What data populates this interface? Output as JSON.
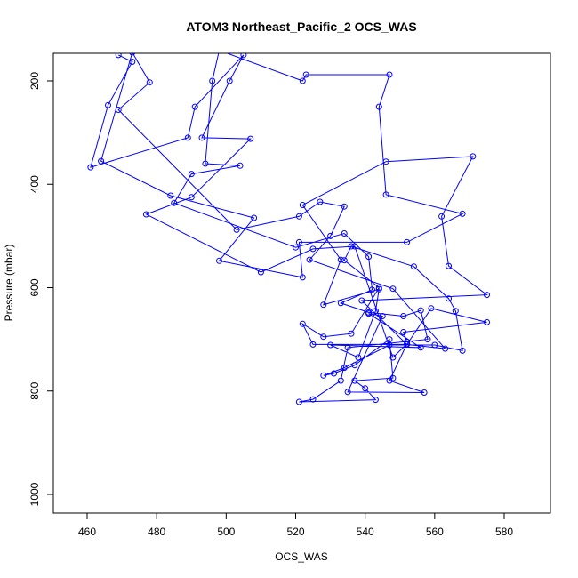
{
  "chart_data": {
    "type": "line",
    "title": "ATOM3 Northeast_Pacific_2 OCS_WAS",
    "xlabel": "OCS_WAS",
    "ylabel": "Pressure (mbar)",
    "xlim": [
      450,
      592
    ],
    "ylim": [
      1035,
      150
    ],
    "y_reversed": true,
    "x_ticks": [
      460,
      480,
      500,
      520,
      540,
      560,
      580
    ],
    "y_ticks": [
      200,
      400,
      600,
      800,
      1000
    ],
    "grid": false,
    "legend": "none",
    "line_color": "#0000ff",
    "series": [
      {
        "values": [
          [
            469,
            150
          ],
          [
            473,
            163
          ],
          [
            466,
            247
          ],
          [
            461,
            367
          ],
          [
            489,
            310
          ],
          [
            491,
            250
          ],
          [
            505,
            150
          ],
          [
            501,
            200
          ],
          [
            493,
            310
          ],
          [
            507,
            312
          ],
          [
            490,
            425
          ],
          [
            477,
            458
          ],
          [
            510,
            570
          ],
          [
            525,
            525
          ],
          [
            537,
            520
          ],
          [
            548,
            735
          ],
          [
            552,
            709
          ],
          [
            547,
            780
          ],
          [
            557,
            803
          ],
          [
            535,
            802
          ],
          [
            545,
            655
          ],
          [
            541,
            650
          ],
          [
            556,
            716
          ],
          [
            530,
            711
          ],
          [
            538,
            735
          ],
          [
            543,
            645
          ],
          [
            544,
            603
          ],
          [
            528,
            633
          ],
          [
            533,
            546
          ],
          [
            522,
            440
          ],
          [
            546,
            356
          ],
          [
            571,
            346
          ],
          [
            562,
            462
          ],
          [
            564,
            558
          ],
          [
            575,
            614
          ],
          [
            539,
            625
          ],
          [
            552,
            710
          ],
          [
            563,
            718
          ],
          [
            548,
            602
          ],
          [
            524,
            546
          ],
          [
            530,
            500
          ],
          [
            534,
            443
          ],
          [
            527,
            434
          ],
          [
            521,
            462
          ],
          [
            503,
            488
          ],
          [
            469,
            256
          ],
          [
            478,
            203
          ],
          [
            473,
            145
          ],
          [
            464,
            355
          ],
          [
            484,
            422
          ],
          [
            508,
            465
          ],
          [
            498,
            548
          ],
          [
            522,
            580
          ],
          [
            521,
            512
          ],
          [
            552,
            512
          ],
          [
            568,
            457
          ],
          [
            546,
            420
          ],
          [
            544,
            250
          ],
          [
            547,
            188
          ],
          [
            523,
            188
          ],
          [
            522,
            200
          ],
          [
            498,
            141
          ],
          [
            496,
            200
          ],
          [
            494,
            360
          ],
          [
            504,
            364
          ],
          [
            490,
            380
          ],
          [
            485,
            436
          ],
          [
            520,
            522
          ],
          [
            534,
            495
          ],
          [
            541,
            540
          ],
          [
            542,
            604
          ],
          [
            533,
            630
          ],
          [
            541,
            648
          ],
          [
            551,
            655
          ],
          [
            556,
            644
          ],
          [
            558,
            700
          ],
          [
            535,
            716
          ],
          [
            533,
            780
          ],
          [
            525,
            816
          ],
          [
            521,
            821
          ],
          [
            543,
            817
          ],
          [
            540,
            795
          ],
          [
            537,
            780
          ],
          [
            548,
            775
          ],
          [
            547,
            700
          ],
          [
            537,
            750
          ],
          [
            531,
            766
          ],
          [
            528,
            770
          ],
          [
            534,
            755
          ],
          [
            547,
            711
          ],
          [
            560,
            711
          ],
          [
            568,
            722
          ],
          [
            566,
            645
          ],
          [
            564,
            621
          ],
          [
            554,
            559
          ],
          [
            536,
            520
          ],
          [
            534,
            547
          ],
          [
            544,
            600
          ],
          [
            536,
            689
          ],
          [
            528,
            695
          ],
          [
            522,
            670
          ],
          [
            525,
            710
          ],
          [
            552,
            710
          ],
          [
            559,
            640
          ],
          [
            575,
            667
          ],
          [
            551,
            686
          ],
          [
            552,
            705
          ]
        ]
      }
    ]
  }
}
